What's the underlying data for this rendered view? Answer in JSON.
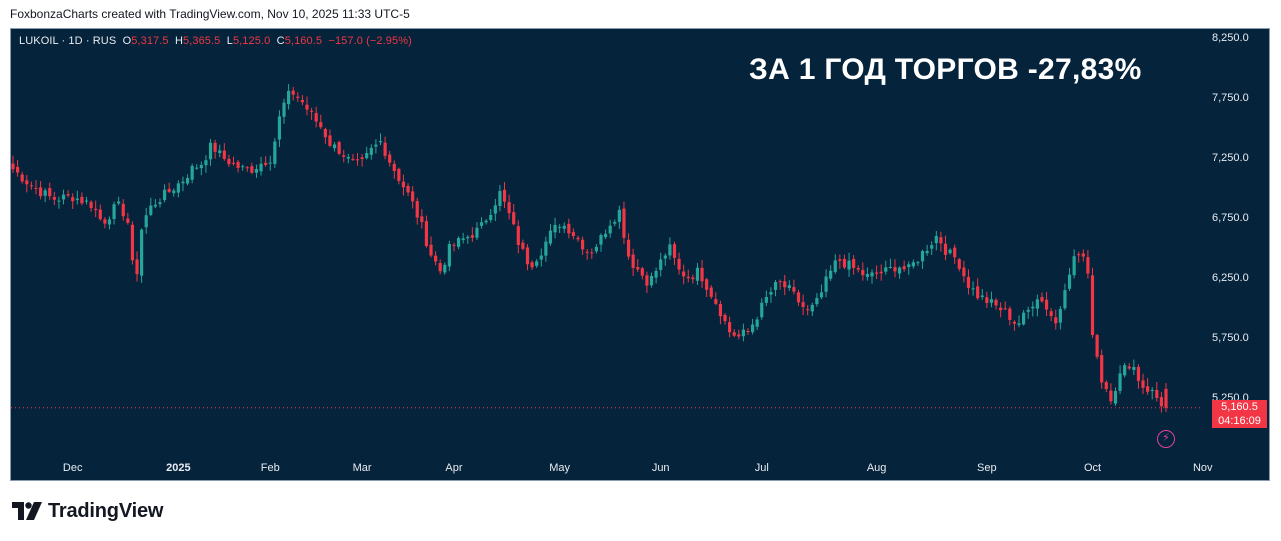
{
  "attribution": "FoxbonzaCharts created with TradingView.com, Nov 10, 2025 11:33 UTC-5",
  "header": {
    "symbol": "LUKOIL · 1D · RUS",
    "o_label": "O",
    "o_value": "5,317.5",
    "h_label": "H",
    "h_value": "5,365.5",
    "l_label": "L",
    "l_value": "5,125.0",
    "c_label": "C",
    "c_value": "5,160.5",
    "change": "−157.0 (−2.95%)"
  },
  "headline": "ЗА 1 ГОД ТОРГОВ -27,83%",
  "last_price_tag": {
    "price": "5,160.5",
    "countdown": "04:16:09"
  },
  "brand": {
    "name": "TradingView",
    "logo_icon": "tradingview-logo-icon"
  },
  "colors": {
    "background": "#05233a",
    "up": "#26a69a",
    "down": "#f23645",
    "text": "#e8ecf3"
  },
  "chart_data": {
    "type": "candlestick",
    "symbol": "LUKOIL",
    "interval": "1D",
    "ylim": [
      4820,
      8300
    ],
    "y_ticks": [
      8250,
      7750,
      7250,
      6750,
      6250,
      5750,
      5250
    ],
    "y_tick_labels": [
      "8,250.0",
      "7,750.0",
      "7,250.0",
      "6,750.0",
      "6,250.0",
      "5,750.0",
      "5,250.0"
    ],
    "x_ticks": [
      {
        "label": "Dec",
        "index": 12
      },
      {
        "label": "2025",
        "index": 33
      },
      {
        "label": "Feb",
        "index": 52
      },
      {
        "label": "Mar",
        "index": 70
      },
      {
        "label": "Apr",
        "index": 89
      },
      {
        "label": "May",
        "index": 110
      },
      {
        "label": "Jun",
        "index": 130
      },
      {
        "label": "Jul",
        "index": 151
      },
      {
        "label": "Aug",
        "index": 174
      },
      {
        "label": "Sep",
        "index": 196
      },
      {
        "label": "Oct",
        "index": 217
      },
      {
        "label": "Nov",
        "index": 239
      }
    ],
    "candle_count": 252,
    "last_close": 5160.5,
    "close_anchors": [
      [
        0,
        7150
      ],
      [
        4,
        7000
      ],
      [
        8,
        6900
      ],
      [
        12,
        6920
      ],
      [
        16,
        6850
      ],
      [
        18,
        6700
      ],
      [
        21,
        6850
      ],
      [
        23,
        6750
      ],
      [
        24,
        6350
      ],
      [
        25,
        6300
      ],
      [
        26,
        6700
      ],
      [
        28,
        6850
      ],
      [
        31,
        6950
      ],
      [
        34,
        7050
      ],
      [
        36,
        7150
      ],
      [
        38,
        7200
      ],
      [
        40,
        7350
      ],
      [
        42,
        7250
      ],
      [
        44,
        7200
      ],
      [
        46,
        7150
      ],
      [
        48,
        7150
      ],
      [
        50,
        7200
      ],
      [
        52,
        7250
      ],
      [
        54,
        7650
      ],
      [
        56,
        7800
      ],
      [
        58,
        7720
      ],
      [
        60,
        7600
      ],
      [
        62,
        7500
      ],
      [
        64,
        7350
      ],
      [
        66,
        7300
      ],
      [
        68,
        7200
      ],
      [
        70,
        7180
      ],
      [
        72,
        7300
      ],
      [
        74,
        7380
      ],
      [
        76,
        7200
      ],
      [
        78,
        7050
      ],
      [
        80,
        6900
      ],
      [
        82,
        6700
      ],
      [
        84,
        6450
      ],
      [
        86,
        6300
      ],
      [
        88,
        6500
      ],
      [
        90,
        6550
      ],
      [
        92,
        6600
      ],
      [
        94,
        6650
      ],
      [
        96,
        6800
      ],
      [
        98,
        6950
      ],
      [
        100,
        6750
      ],
      [
        102,
        6500
      ],
      [
        104,
        6350
      ],
      [
        106,
        6450
      ],
      [
        108,
        6600
      ],
      [
        110,
        6700
      ],
      [
        112,
        6650
      ],
      [
        114,
        6550
      ],
      [
        116,
        6450
      ],
      [
        118,
        6550
      ],
      [
        120,
        6700
      ],
      [
        122,
        6800
      ],
      [
        124,
        6400
      ],
      [
        126,
        6300
      ],
      [
        128,
        6200
      ],
      [
        130,
        6350
      ],
      [
        132,
        6500
      ],
      [
        134,
        6300
      ],
      [
        136,
        6250
      ],
      [
        138,
        6300
      ],
      [
        140,
        6150
      ],
      [
        142,
        6000
      ],
      [
        144,
        5800
      ],
      [
        146,
        5750
      ],
      [
        148,
        5800
      ],
      [
        150,
        5950
      ],
      [
        152,
        6100
      ],
      [
        154,
        6200
      ],
      [
        156,
        6150
      ],
      [
        158,
        6050
      ],
      [
        160,
        5950
      ],
      [
        162,
        6050
      ],
      [
        164,
        6250
      ],
      [
        166,
        6400
      ],
      [
        168,
        6350
      ],
      [
        170,
        6300
      ],
      [
        172,
        6250
      ],
      [
        174,
        6280
      ],
      [
        176,
        6300
      ],
      [
        178,
        6350
      ],
      [
        180,
        6300
      ],
      [
        182,
        6400
      ],
      [
        184,
        6500
      ],
      [
        186,
        6600
      ],
      [
        188,
        6450
      ],
      [
        190,
        6400
      ],
      [
        192,
        6200
      ],
      [
        194,
        6100
      ],
      [
        196,
        6050
      ],
      [
        198,
        6000
      ],
      [
        200,
        5950
      ],
      [
        202,
        5850
      ],
      [
        204,
        5950
      ],
      [
        206,
        6100
      ],
      [
        208,
        6000
      ],
      [
        210,
        5850
      ],
      [
        212,
        6250
      ],
      [
        214,
        6450
      ],
      [
        216,
        6400
      ],
      [
        217,
        5850
      ],
      [
        219,
        5400
      ],
      [
        221,
        5250
      ],
      [
        223,
        5450
      ],
      [
        225,
        5550
      ],
      [
        227,
        5350
      ],
      [
        229,
        5300
      ],
      [
        231,
        5200
      ],
      [
        232,
        5160.5
      ]
    ]
  }
}
